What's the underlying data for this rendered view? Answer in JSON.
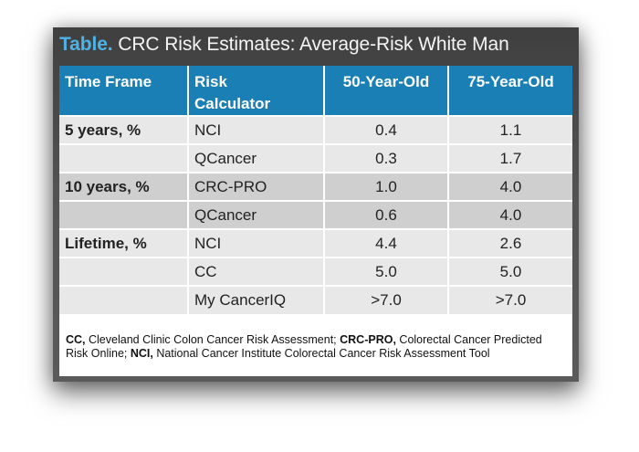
{
  "title": {
    "tag": "Table.",
    "text": "CRC Risk Estimates: Average-Risk White Man"
  },
  "headers": {
    "time_frame": "Time Frame",
    "risk_calc_line1": "Risk",
    "risk_calc_line2": "Calculator",
    "age50": "50-Year-Old",
    "age75": "75-Year-Old"
  },
  "rows": [
    {
      "frame": "5 years, %",
      "calc": "NCI",
      "v50": "0.4",
      "v75": "1.1"
    },
    {
      "frame": "",
      "calc": "QCancer",
      "v50": "0.3",
      "v75": "1.7"
    },
    {
      "frame": "10 years, %",
      "calc": "CRC-PRO",
      "v50": "1.0",
      "v75": "4.0"
    },
    {
      "frame": "",
      "calc": "QCancer",
      "v50": "0.6",
      "v75": "4.0"
    },
    {
      "frame": "Lifetime, %",
      "calc": "NCI",
      "v50": "4.4",
      "v75": "2.6"
    },
    {
      "frame": "",
      "calc": "CC",
      "v50": "5.0",
      "v75": "5.0"
    },
    {
      "frame": "",
      "calc": "My CancerIQ",
      "v50": ">7.0",
      "v75": ">7.0"
    }
  ],
  "footnote": {
    "abbr1": "CC,",
    "def1": " Cleveland Clinic Colon Cancer Risk Assessment; ",
    "abbr2": "CRC-PRO,",
    "def2": " Colorectal Cancer Predicted Risk Online; ",
    "abbr3": "NCI,",
    "def3": " National Cancer Institute Colorectal Cancer Risk Assessment Tool"
  }
}
